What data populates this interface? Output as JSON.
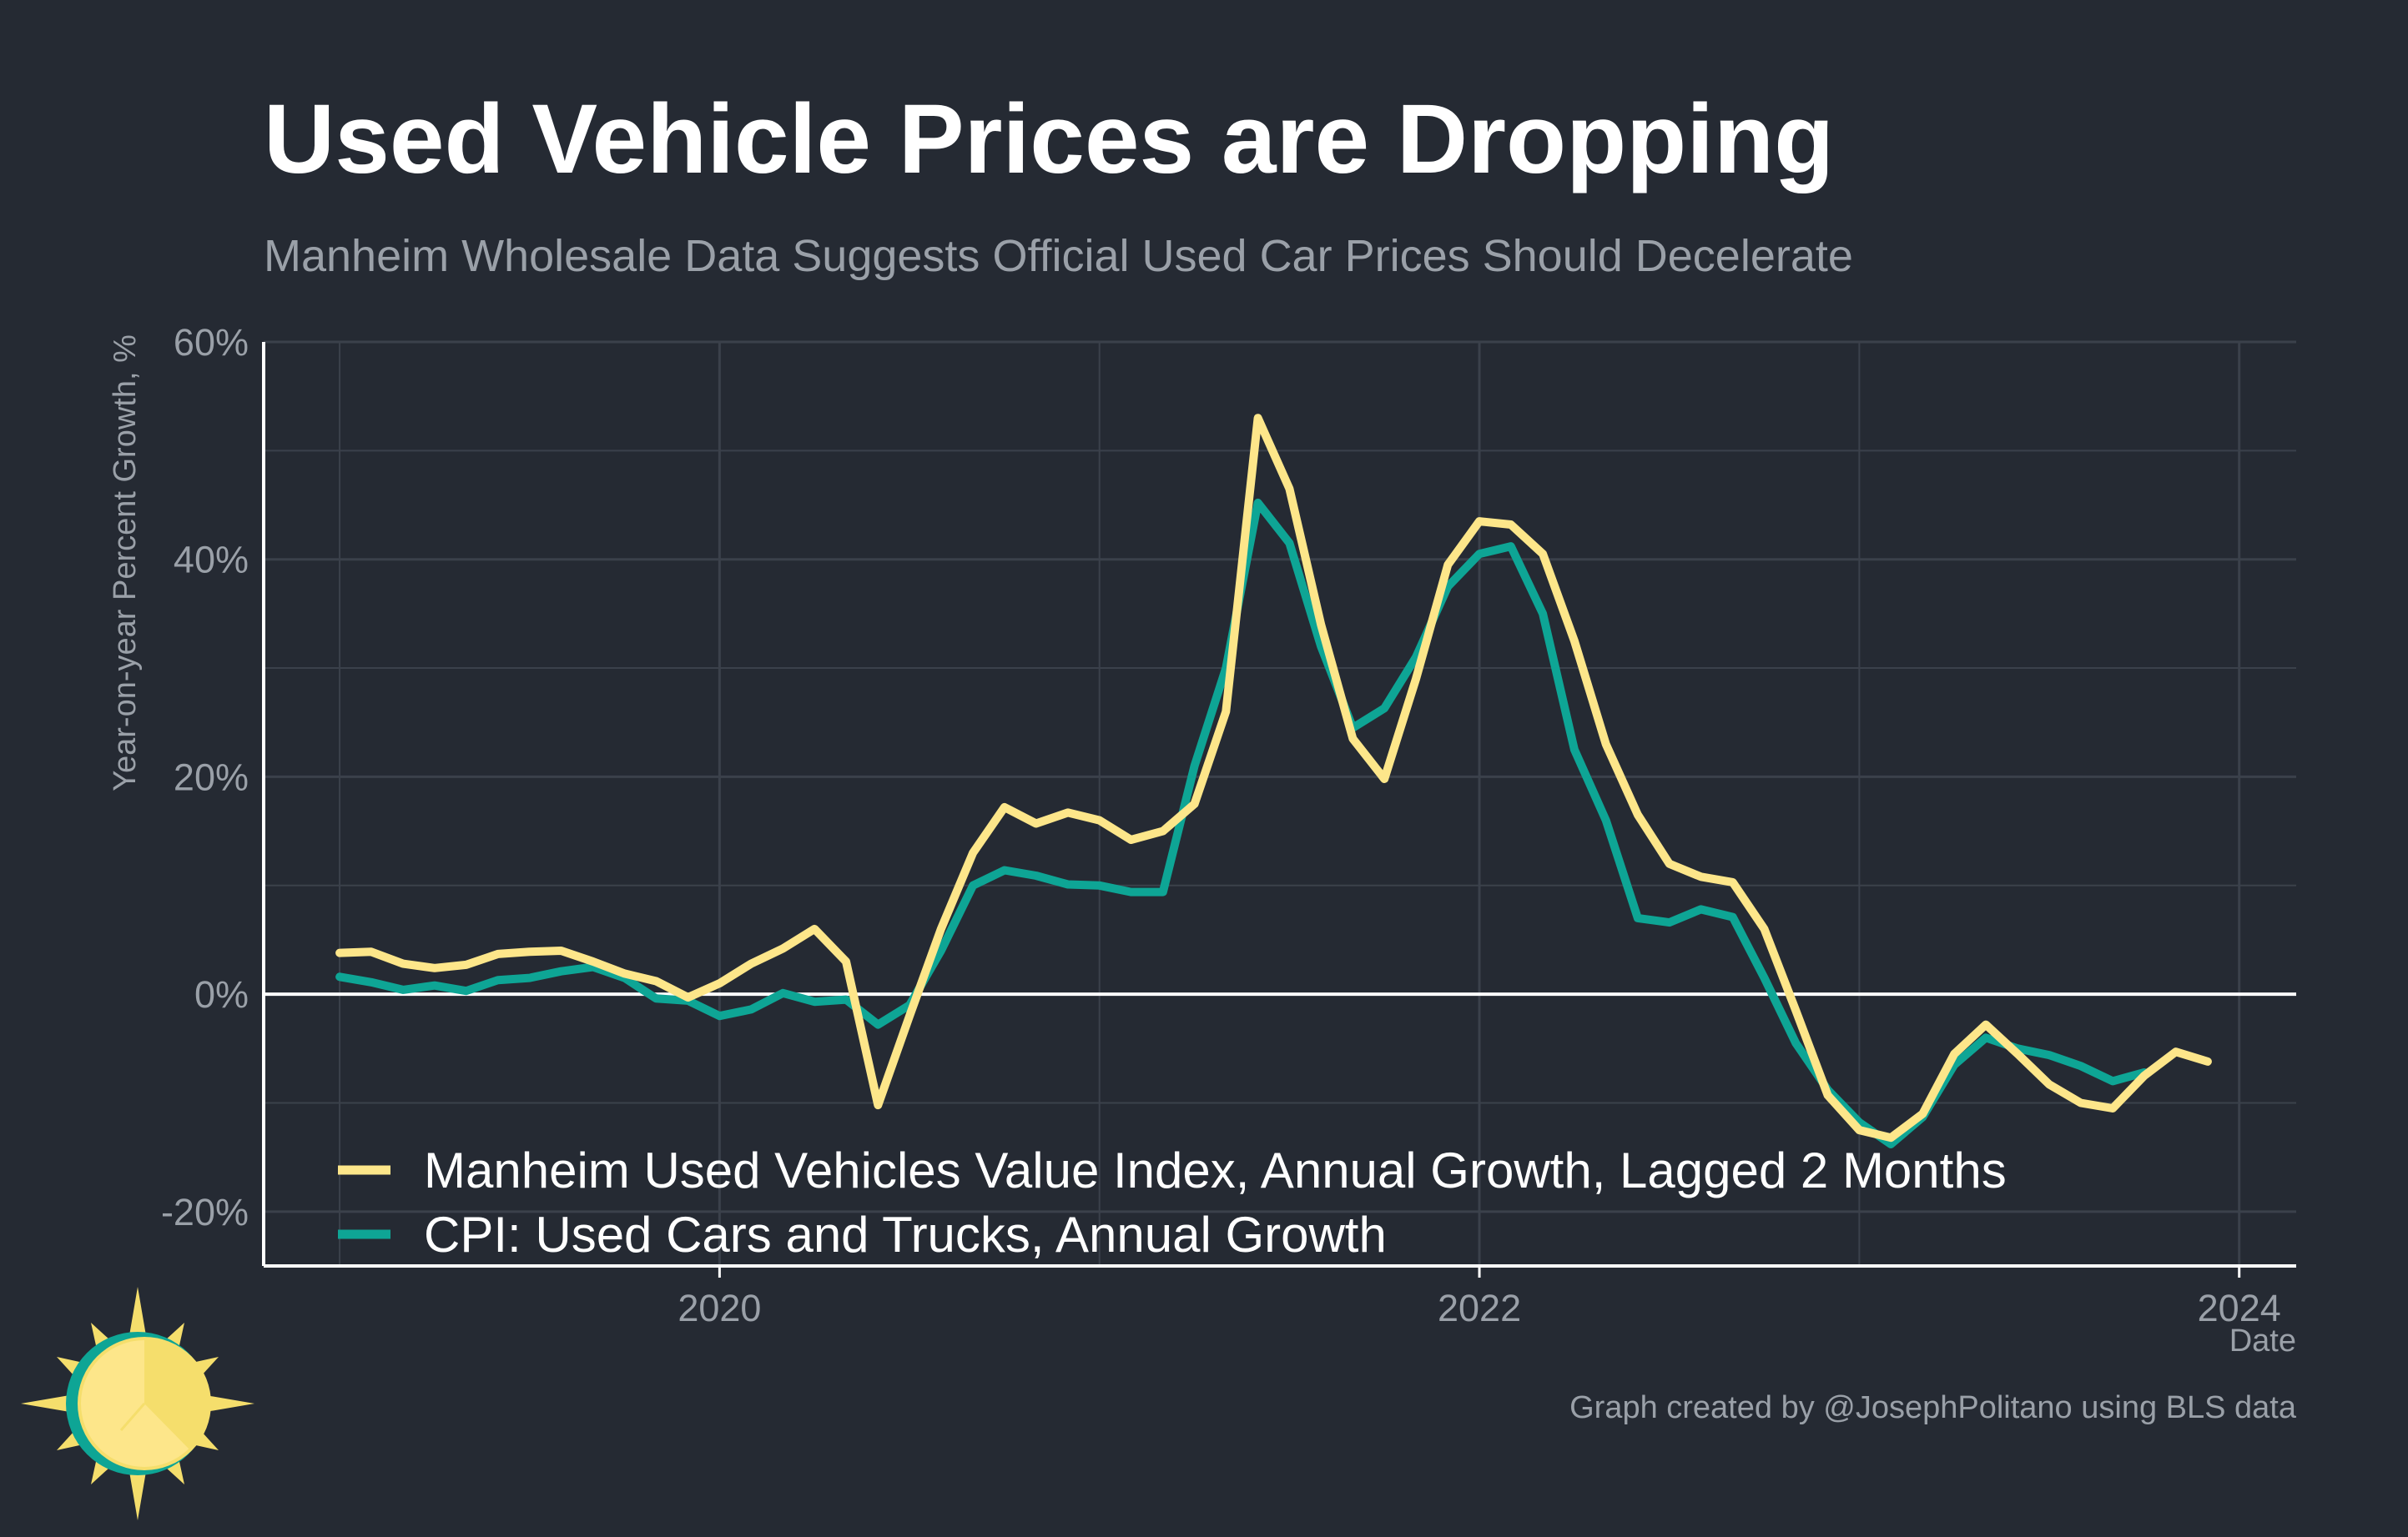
{
  "chart_data": {
    "type": "line",
    "title": "Used Vehicle Prices are Dropping",
    "subtitle": "Manheim Wholesale Data Suggests Official Used Car Prices Should Decelerate",
    "xlabel": "Date",
    "ylabel": "Year-on-year Percent Growth, %",
    "caption": "Graph created by @JosephPolitano using BLS data",
    "xlim": [
      2018.8,
      2024.15
    ],
    "ylim": [
      -25,
      60
    ],
    "y_ticks": [
      -20,
      0,
      20,
      40,
      60
    ],
    "y_tick_labels": [
      "-20%",
      "0%",
      "20%",
      "40%",
      "60%"
    ],
    "x_ticks": [
      2020,
      2022,
      2024
    ],
    "x_tick_labels": [
      "2020",
      "2022",
      "2024"
    ],
    "grid": true,
    "legend_position": "bottom-left",
    "series": [
      {
        "name": "Manheim Used Vehicles Value Index, Annual Growth, Lagged 2 Months",
        "color": "#fde68a",
        "x": [
          2019.0,
          2019.083,
          2019.167,
          2019.25,
          2019.333,
          2019.417,
          2019.5,
          2019.583,
          2019.667,
          2019.75,
          2019.833,
          2019.917,
          2020.0,
          2020.083,
          2020.167,
          2020.25,
          2020.333,
          2020.417,
          2020.5,
          2020.583,
          2020.667,
          2020.75,
          2020.833,
          2020.917,
          2021.0,
          2021.083,
          2021.167,
          2021.25,
          2021.333,
          2021.417,
          2021.5,
          2021.583,
          2021.667,
          2021.75,
          2021.833,
          2021.917,
          2022.0,
          2022.083,
          2022.167,
          2022.25,
          2022.333,
          2022.417,
          2022.5,
          2022.583,
          2022.667,
          2022.75,
          2022.833,
          2022.917,
          2023.0,
          2023.083,
          2023.167,
          2023.25,
          2023.333,
          2023.417,
          2023.5,
          2023.583,
          2023.667,
          2023.75,
          2023.833,
          2023.917
        ],
        "values": [
          3.8,
          3.9,
          2.8,
          2.4,
          2.7,
          3.7,
          3.9,
          4.0,
          3.0,
          1.9,
          1.2,
          -0.3,
          1.0,
          2.8,
          4.2,
          6.0,
          3.0,
          -10.2,
          -2.0,
          6.0,
          13.0,
          17.2,
          15.7,
          16.7,
          16.0,
          14.2,
          15.0,
          17.5,
          26.0,
          53.0,
          46.5,
          34.0,
          23.5,
          19.8,
          29.0,
          39.5,
          43.5,
          43.2,
          40.5,
          32.5,
          23.0,
          16.5,
          12.0,
          10.8,
          10.3,
          6.0,
          -1.5,
          -9.3,
          -12.5,
          -13.2,
          -11.0,
          -5.5,
          -2.8,
          -5.5,
          -8.3,
          -10.0,
          -10.5,
          -7.5,
          -5.3,
          -6.2
        ]
      },
      {
        "name": "CPI: Used Cars and Trucks, Annual Growth",
        "color": "#0ea595",
        "x": [
          2019.0,
          2019.083,
          2019.167,
          2019.25,
          2019.333,
          2019.417,
          2019.5,
          2019.583,
          2019.667,
          2019.75,
          2019.833,
          2019.917,
          2020.0,
          2020.083,
          2020.167,
          2020.25,
          2020.333,
          2020.417,
          2020.5,
          2020.583,
          2020.667,
          2020.75,
          2020.833,
          2020.917,
          2021.0,
          2021.083,
          2021.167,
          2021.25,
          2021.333,
          2021.417,
          2021.5,
          2021.583,
          2021.667,
          2021.75,
          2021.833,
          2021.917,
          2022.0,
          2022.083,
          2022.167,
          2022.25,
          2022.333,
          2022.417,
          2022.5,
          2022.583,
          2022.667,
          2022.75,
          2022.833,
          2022.917,
          2023.0,
          2023.083,
          2023.167,
          2023.25,
          2023.333,
          2023.417,
          2023.5,
          2023.583,
          2023.667,
          2023.75
        ],
        "values": [
          1.6,
          1.1,
          0.4,
          0.8,
          0.3,
          1.3,
          1.5,
          2.1,
          2.5,
          1.5,
          -0.4,
          -0.6,
          -2.0,
          -1.4,
          0.1,
          -0.7,
          -0.5,
          -2.8,
          -1.0,
          4.0,
          10.0,
          11.4,
          10.9,
          10.1,
          10.0,
          9.4,
          9.4,
          21.0,
          30.0,
          45.2,
          41.5,
          32.0,
          24.5,
          26.3,
          31.0,
          37.5,
          40.5,
          41.2,
          35.0,
          22.5,
          16.0,
          7.0,
          6.6,
          7.8,
          7.1,
          1.5,
          -4.5,
          -8.8,
          -11.8,
          -13.8,
          -11.3,
          -6.5,
          -4.0,
          -5.0,
          -5.6,
          -6.6,
          -8.0,
          -7.2
        ]
      }
    ]
  }
}
